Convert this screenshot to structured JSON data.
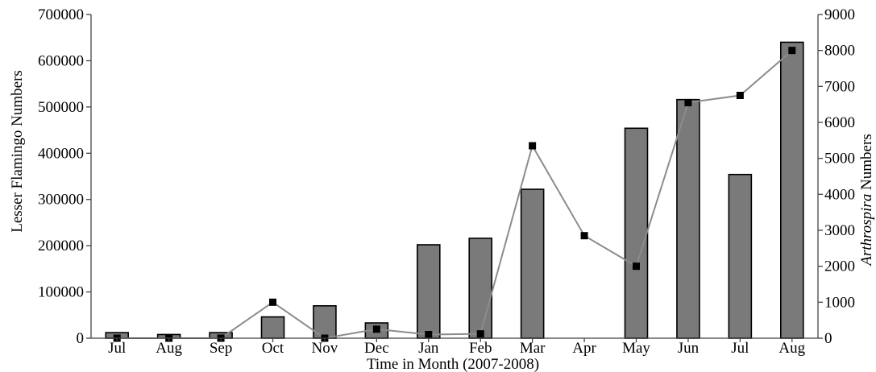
{
  "chart_data": {
    "type": "bar",
    "categories": [
      "Jul",
      "Aug",
      "Sep",
      "Oct",
      "Nov",
      "Dec",
      "Jan",
      "Feb",
      "Mar",
      "Apr",
      "May",
      "Jun",
      "Jul",
      "Aug"
    ],
    "xlabel": "Time in Month (2007-2008)",
    "ylabel": "Lesser Flamingo Numbers",
    "y2label": {
      "italic": "Arthrospira",
      "rest": " Numbers"
    },
    "ylim": [
      0,
      700000
    ],
    "y2lim": [
      0,
      9000
    ],
    "yticks": [
      "0",
      "100000",
      "200000",
      "300000",
      "400000",
      "500000",
      "600000",
      "700000"
    ],
    "y2ticks": [
      "0",
      "1000",
      "2000",
      "3000",
      "4000",
      "5000",
      "6000",
      "7000",
      "8000",
      "9000"
    ],
    "series": [
      {
        "kind": "bar",
        "axis": "left",
        "values": [
          12000,
          8000,
          12000,
          46000,
          70000,
          33000,
          202000,
          216000,
          322000,
          0,
          454000,
          516000,
          354000,
          640000
        ],
        "color": "#7a7a7a"
      },
      {
        "kind": "line",
        "axis": "right",
        "values": [
          0,
          0,
          0,
          1000,
          0,
          250,
          100,
          120,
          5350,
          2850,
          2000,
          6550,
          6750,
          8000
        ],
        "color": "#8c8c8c",
        "marker_color": "#000000"
      }
    ],
    "grid": false,
    "legend": "none"
  }
}
